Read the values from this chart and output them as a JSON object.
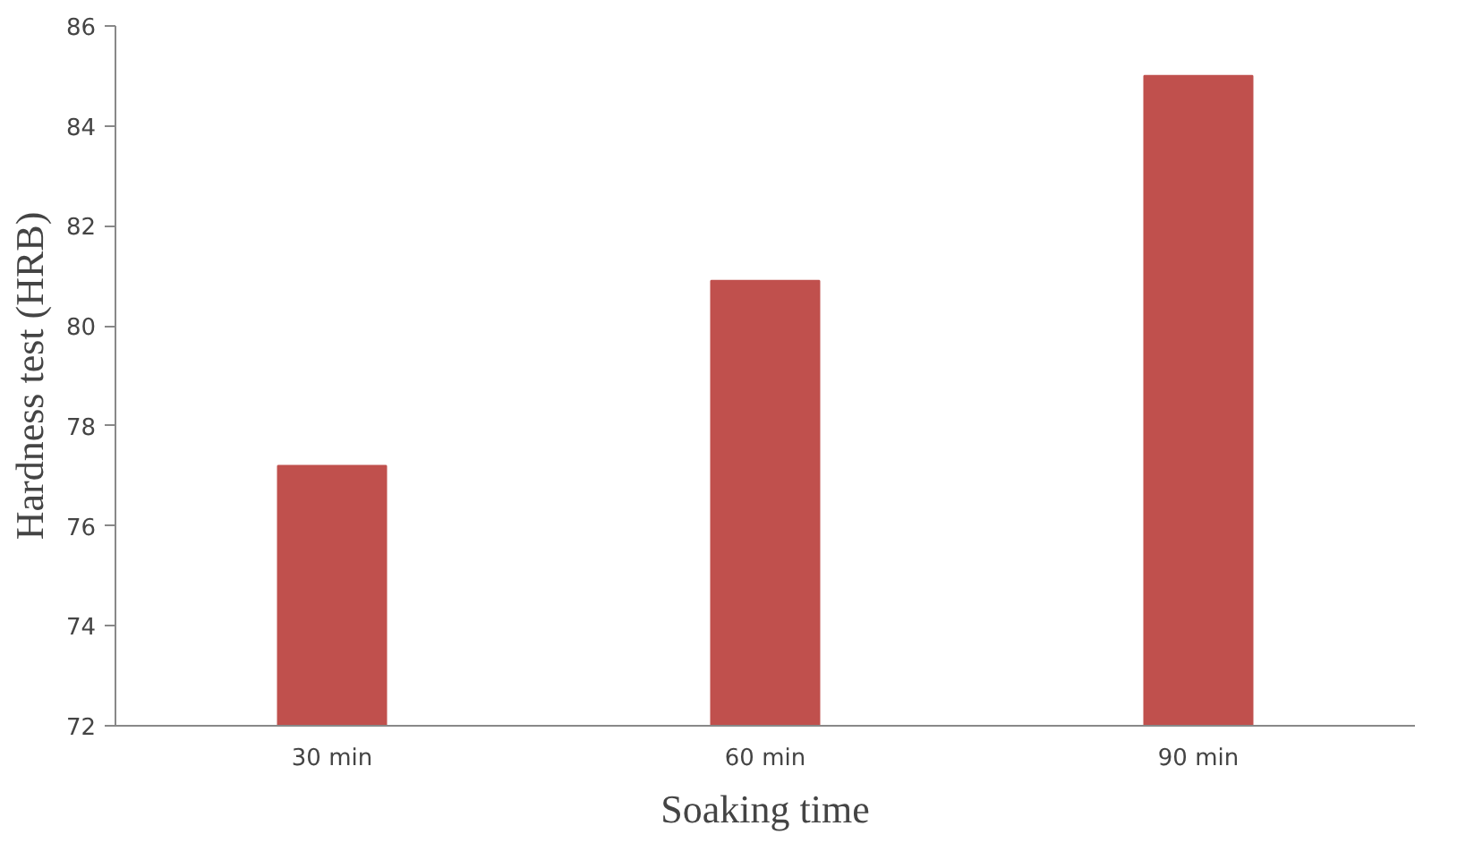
{
  "chart_data": {
    "type": "bar",
    "xlabel": "Soaking time",
    "ylabel": "Hardness test (HRB)",
    "categories": [
      "30 min",
      "60 min",
      "90 min"
    ],
    "values": [
      77.2,
      80.9,
      85.0
    ],
    "color": "#c0504d",
    "ylim": [
      72,
      86
    ],
    "yticks": [
      72,
      74,
      76,
      78,
      80,
      82,
      84,
      86
    ],
    "grid": false
  }
}
